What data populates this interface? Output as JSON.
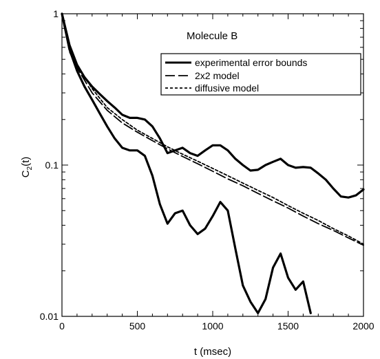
{
  "chart_data": {
    "type": "line",
    "annotation": "Molecule B",
    "xlabel": "t (msec)",
    "ylabel_main": "C",
    "ylabel_sub": "2",
    "ylabel_tail": "(t)",
    "xlim": [
      0,
      2000
    ],
    "ylim": [
      0.01,
      1
    ],
    "yscale": "log",
    "grid": false,
    "legend_position": "top-right",
    "x_ticks": [
      {
        "value": 0,
        "label": "0"
      },
      {
        "value": 500,
        "label": "500"
      },
      {
        "value": 1000,
        "label": "1000"
      },
      {
        "value": 1500,
        "label": "1500"
      },
      {
        "value": 2000,
        "label": "2000"
      }
    ],
    "y_ticks": [
      {
        "value": 0.01,
        "label": "0.01"
      },
      {
        "value": 0.1,
        "label": "0.1"
      },
      {
        "value": 1,
        "label": "1"
      }
    ],
    "legend": [
      {
        "label": "experimental error bounds",
        "style": "solid"
      },
      {
        "label": "2x2 model",
        "style": "longdash"
      },
      {
        "label": "diffusive model",
        "style": "dotted"
      }
    ],
    "series": [
      {
        "name": "experimental error bounds",
        "style": "solid",
        "bound": "upper",
        "x": [
          0,
          50,
          100,
          150,
          200,
          250,
          300,
          350,
          400,
          450,
          500,
          550,
          600,
          650,
          700,
          750,
          800,
          850,
          900,
          950,
          1000,
          1050,
          1100,
          1150,
          1200,
          1250,
          1300,
          1350,
          1400,
          1450,
          1500,
          1550,
          1600,
          1650,
          1700,
          1750,
          1800,
          1850,
          1900,
          1950,
          2000
        ],
        "y": [
          1.0,
          0.62,
          0.46,
          0.38,
          0.33,
          0.295,
          0.265,
          0.24,
          0.215,
          0.205,
          0.205,
          0.2,
          0.18,
          0.15,
          0.12,
          0.125,
          0.13,
          0.12,
          0.115,
          0.125,
          0.135,
          0.135,
          0.125,
          0.11,
          0.1,
          0.092,
          0.093,
          0.1,
          0.105,
          0.11,
          0.1,
          0.096,
          0.097,
          0.096,
          0.088,
          0.08,
          0.07,
          0.062,
          0.061,
          0.063,
          0.069
        ]
      },
      {
        "name": "experimental error bounds",
        "style": "solid",
        "bound": "lower",
        "x": [
          0,
          50,
          100,
          150,
          200,
          250,
          300,
          350,
          400,
          450,
          500,
          550,
          600,
          650,
          700,
          750,
          800,
          850,
          900,
          950,
          1000,
          1050,
          1100,
          1150,
          1200,
          1250,
          1300,
          1350,
          1400,
          1450,
          1500,
          1550,
          1600,
          1650
        ],
        "y": [
          1.0,
          0.58,
          0.42,
          0.33,
          0.27,
          0.22,
          0.18,
          0.15,
          0.13,
          0.125,
          0.125,
          0.115,
          0.085,
          0.055,
          0.041,
          0.048,
          0.05,
          0.04,
          0.035,
          0.038,
          0.046,
          0.057,
          0.05,
          0.028,
          0.016,
          0.0125,
          0.0105,
          0.013,
          0.021,
          0.026,
          0.018,
          0.015,
          0.017,
          0.0105
        ]
      },
      {
        "name": "2x2 model",
        "style": "longdash",
        "x": [
          0,
          50,
          100,
          200,
          300,
          400,
          500,
          600,
          700,
          800,
          900,
          1000,
          1100,
          1200,
          1300,
          1400,
          1500,
          1600,
          1700,
          1800,
          1900,
          2000
        ],
        "y": [
          1.0,
          0.56,
          0.44,
          0.3,
          0.23,
          0.19,
          0.165,
          0.145,
          0.128,
          0.114,
          0.102,
          0.091,
          0.081,
          0.073,
          0.065,
          0.058,
          0.052,
          0.046,
          0.041,
          0.037,
          0.033,
          0.0295
        ]
      },
      {
        "name": "diffusive model",
        "style": "dotted",
        "x": [
          0,
          50,
          100,
          200,
          300,
          400,
          500,
          600,
          700,
          800,
          900,
          1000,
          1100,
          1200,
          1300,
          1400,
          1500,
          1600,
          1700,
          1800,
          1900,
          2000
        ],
        "y": [
          1.0,
          0.58,
          0.46,
          0.32,
          0.24,
          0.2,
          0.17,
          0.15,
          0.132,
          0.118,
          0.106,
          0.095,
          0.085,
          0.076,
          0.068,
          0.061,
          0.054,
          0.048,
          0.043,
          0.038,
          0.034,
          0.03
        ]
      }
    ]
  }
}
